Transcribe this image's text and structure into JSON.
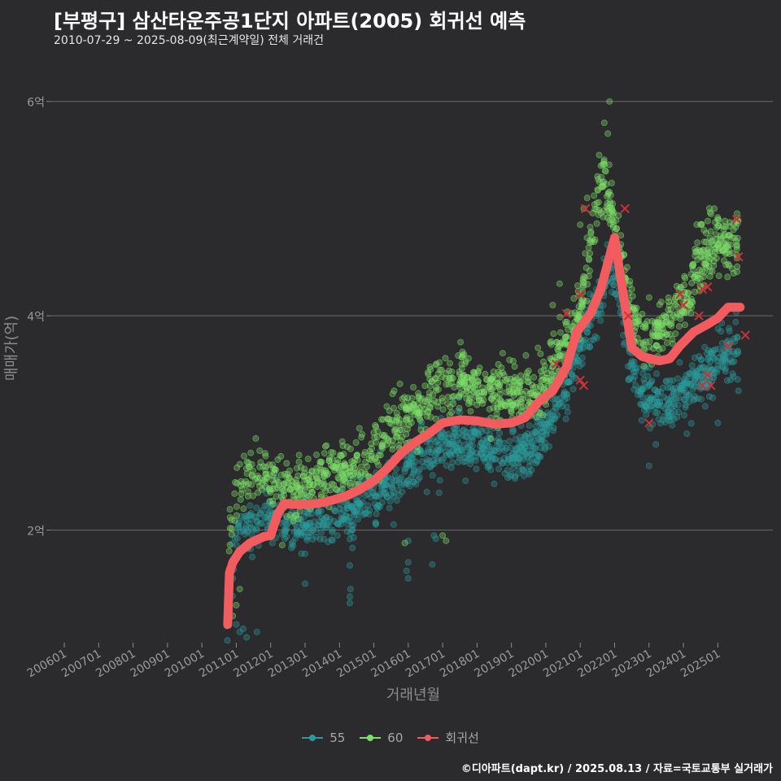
{
  "chart_data": {
    "type": "scatter",
    "title": "[부평구] 삼산타운주공1단지 아파트(2005) 회귀선 예측",
    "subtitle": "2010-07-29 ~ 2025-08-09(최근계약일) 전체 거래건",
    "xlabel": "거래년월",
    "ylabel": "매매가(억)",
    "x_range": [
      2005.55,
      2026.6
    ],
    "ylim": [
      0.95,
      6.4
    ],
    "y_ticks": [
      {
        "value": 2,
        "label": "2억"
      },
      {
        "value": 4,
        "label": "4억"
      },
      {
        "value": 6,
        "label": "6억"
      }
    ],
    "x_ticks": [
      {
        "value": 2006.0,
        "label": "200601"
      },
      {
        "value": 2007.0,
        "label": "200701"
      },
      {
        "value": 2008.0,
        "label": "200801"
      },
      {
        "value": 2009.0,
        "label": "200901"
      },
      {
        "value": 2010.0,
        "label": "201001"
      },
      {
        "value": 2011.0,
        "label": "201101"
      },
      {
        "value": 2012.0,
        "label": "201201"
      },
      {
        "value": 2013.0,
        "label": "201301"
      },
      {
        "value": 2014.0,
        "label": "201401"
      },
      {
        "value": 2015.0,
        "label": "201501"
      },
      {
        "value": 2016.0,
        "label": "201601"
      },
      {
        "value": 2017.0,
        "label": "201701"
      },
      {
        "value": 2018.0,
        "label": "201801"
      },
      {
        "value": 2019.0,
        "label": "201901"
      },
      {
        "value": 2020.0,
        "label": "202001"
      },
      {
        "value": 2021.0,
        "label": "202101"
      },
      {
        "value": 2022.0,
        "label": "202201"
      },
      {
        "value": 2023.0,
        "label": "202301"
      },
      {
        "value": 2024.0,
        "label": "202401"
      },
      {
        "value": 2025.0,
        "label": "202501"
      }
    ],
    "grid": "horizontal",
    "legend_position": "bottom",
    "series": [
      {
        "name": "55",
        "color": "#2a9b9b",
        "trend": [
          [
            2010.7,
            1.0
          ],
          [
            2011.0,
            1.95
          ],
          [
            2011.5,
            2.05
          ],
          [
            2012.0,
            2.12
          ],
          [
            2012.5,
            2.08
          ],
          [
            2013.0,
            2.05
          ],
          [
            2013.5,
            2.08
          ],
          [
            2014.0,
            2.15
          ],
          [
            2014.5,
            2.2
          ],
          [
            2015.0,
            2.3
          ],
          [
            2015.5,
            2.45
          ],
          [
            2016.0,
            2.55
          ],
          [
            2016.5,
            2.7
          ],
          [
            2017.0,
            2.8
          ],
          [
            2017.5,
            2.82
          ],
          [
            2018.0,
            2.8
          ],
          [
            2018.5,
            2.75
          ],
          [
            2019.0,
            2.72
          ],
          [
            2019.5,
            2.75
          ],
          [
            2020.0,
            2.95
          ],
          [
            2020.5,
            3.25
          ],
          [
            2021.0,
            3.7
          ],
          [
            2021.5,
            4.15
          ],
          [
            2021.9,
            4.5
          ],
          [
            2022.2,
            4.1
          ],
          [
            2022.6,
            3.4
          ],
          [
            2023.0,
            3.2
          ],
          [
            2023.5,
            3.15
          ],
          [
            2024.0,
            3.3
          ],
          [
            2024.5,
            3.45
          ],
          [
            2025.0,
            3.6
          ],
          [
            2025.6,
            3.7
          ]
        ],
        "spread": 0.13,
        "points": [
          [
            2014.3,
            1.32
          ],
          [
            2014.3,
            1.38
          ],
          [
            2014.32,
            1.45
          ],
          [
            2014.3,
            1.67
          ],
          [
            2013.0,
            1.5
          ],
          [
            2016.0,
            1.55
          ],
          [
            2015.95,
            1.62
          ],
          [
            2016.0,
            1.7
          ],
          [
            2016.7,
            1.68
          ],
          [
            2016.8,
            1.92
          ],
          [
            2016.75,
            1.95
          ],
          [
            2016.0,
            1.9
          ],
          [
            2011.1,
            1.05
          ],
          [
            2011.2,
            1.08
          ],
          [
            2011.0,
            1.12
          ],
          [
            2011.3,
            1.0
          ],
          [
            2011.6,
            1.05
          ],
          [
            2010.9,
            1.55
          ],
          [
            2010.95,
            1.7
          ],
          [
            2023.0,
            2.6
          ],
          [
            2023.2,
            2.8
          ],
          [
            2024.1,
            2.9
          ],
          [
            2025.0,
            3.0
          ],
          [
            2025.6,
            3.3
          ],
          [
            2022.0,
            4.6
          ],
          [
            2021.9,
            4.45
          ],
          [
            2021.7,
            4.3
          ],
          [
            2021.5,
            4.2
          ]
        ]
      },
      {
        "name": "60",
        "color": "#7ee06a",
        "trend": [
          [
            2010.7,
            1.7
          ],
          [
            2011.0,
            2.3
          ],
          [
            2011.5,
            2.55
          ],
          [
            2012.0,
            2.45
          ],
          [
            2012.5,
            2.35
          ],
          [
            2013.0,
            2.45
          ],
          [
            2013.5,
            2.55
          ],
          [
            2014.0,
            2.55
          ],
          [
            2014.5,
            2.6
          ],
          [
            2015.0,
            2.75
          ],
          [
            2015.5,
            2.95
          ],
          [
            2016.0,
            3.05
          ],
          [
            2016.5,
            3.2
          ],
          [
            2017.0,
            3.35
          ],
          [
            2017.5,
            3.4
          ],
          [
            2018.0,
            3.35
          ],
          [
            2018.5,
            3.3
          ],
          [
            2019.0,
            3.25
          ],
          [
            2019.5,
            3.3
          ],
          [
            2020.0,
            3.4
          ],
          [
            2020.5,
            3.7
          ],
          [
            2021.0,
            4.1
          ],
          [
            2021.3,
            4.7
          ],
          [
            2021.6,
            5.3
          ],
          [
            2021.9,
            5.0
          ],
          [
            2022.2,
            4.5
          ],
          [
            2022.6,
            3.9
          ],
          [
            2023.0,
            3.75
          ],
          [
            2023.5,
            3.95
          ],
          [
            2024.0,
            4.1
          ],
          [
            2024.5,
            4.5
          ],
          [
            2025.0,
            4.7
          ],
          [
            2025.6,
            4.7
          ]
        ],
        "spread": 0.14,
        "points": [
          [
            2021.85,
            6.0
          ],
          [
            2021.7,
            5.8
          ],
          [
            2021.8,
            5.7
          ],
          [
            2021.55,
            5.5
          ],
          [
            2021.6,
            5.4
          ],
          [
            2021.5,
            5.3
          ],
          [
            2021.2,
            5.1
          ],
          [
            2021.1,
            5.0
          ],
          [
            2021.0,
            4.85
          ],
          [
            2024.9,
            5.0
          ],
          [
            2024.8,
            4.95
          ],
          [
            2025.0,
            4.9
          ],
          [
            2025.3,
            4.75
          ],
          [
            2024.5,
            4.85
          ],
          [
            2024.6,
            4.8
          ],
          [
            2020.4,
            4.3
          ],
          [
            2020.2,
            4.1
          ],
          [
            2015.9,
            1.88
          ],
          [
            2017.0,
            1.95
          ],
          [
            2017.1,
            1.9
          ],
          [
            2011.0,
            1.3
          ],
          [
            2010.9,
            1.2
          ],
          [
            2011.1,
            1.45
          ]
        ]
      }
    ],
    "regression": {
      "name": "회귀선",
      "color": "#f25c5f",
      "points": [
        [
          2010.75,
          1.12
        ],
        [
          2010.8,
          1.6
        ],
        [
          2010.9,
          1.7
        ],
        [
          2011.1,
          1.8
        ],
        [
          2011.4,
          1.88
        ],
        [
          2011.8,
          1.94
        ],
        [
          2012.0,
          1.95
        ],
        [
          2012.2,
          2.15
        ],
        [
          2012.4,
          2.25
        ],
        [
          2012.6,
          2.24
        ],
        [
          2013.0,
          2.24
        ],
        [
          2013.4,
          2.25
        ],
        [
          2013.8,
          2.28
        ],
        [
          2014.2,
          2.32
        ],
        [
          2014.6,
          2.38
        ],
        [
          2015.0,
          2.46
        ],
        [
          2015.4,
          2.58
        ],
        [
          2015.8,
          2.72
        ],
        [
          2016.2,
          2.82
        ],
        [
          2016.6,
          2.9
        ],
        [
          2017.0,
          3.0
        ],
        [
          2017.5,
          3.03
        ],
        [
          2018.0,
          3.02
        ],
        [
          2018.5,
          2.99
        ],
        [
          2019.0,
          3.0
        ],
        [
          2019.4,
          3.05
        ],
        [
          2019.8,
          3.2
        ],
        [
          2020.2,
          3.3
        ],
        [
          2020.6,
          3.52
        ],
        [
          2020.9,
          3.85
        ],
        [
          2021.3,
          4.02
        ],
        [
          2021.6,
          4.25
        ],
        [
          2022.0,
          4.73
        ],
        [
          2022.2,
          4.3
        ],
        [
          2022.5,
          3.7
        ],
        [
          2022.8,
          3.62
        ],
        [
          2023.3,
          3.58
        ],
        [
          2023.6,
          3.6
        ],
        [
          2023.9,
          3.72
        ],
        [
          2024.3,
          3.85
        ],
        [
          2024.7,
          3.92
        ],
        [
          2025.0,
          3.98
        ],
        [
          2025.3,
          4.08
        ],
        [
          2025.65,
          4.08
        ]
      ]
    },
    "highlighted_trades": [
      [
        2021.15,
        5.0
      ],
      [
        2022.3,
        5.0
      ],
      [
        2020.6,
        4.02
      ],
      [
        2021.0,
        4.2
      ],
      [
        2020.3,
        3.55
      ],
      [
        2021.0,
        3.4
      ],
      [
        2021.1,
        3.35
      ],
      [
        2022.4,
        4.0
      ],
      [
        2023.0,
        3.0
      ],
      [
        2023.9,
        4.2
      ],
      [
        2024.0,
        4.1
      ],
      [
        2024.45,
        4.0
      ],
      [
        2024.55,
        4.25
      ],
      [
        2024.7,
        4.27
      ],
      [
        2024.55,
        3.35
      ],
      [
        2024.7,
        3.45
      ],
      [
        2024.8,
        3.35
      ],
      [
        2025.3,
        3.72
      ],
      [
        2025.55,
        4.9
      ],
      [
        2025.6,
        4.55
      ],
      [
        2025.8,
        3.82
      ]
    ]
  },
  "legend": {
    "items": [
      {
        "label": "55",
        "color": "#2a9b9b"
      },
      {
        "label": "60",
        "color": "#7ee06a"
      },
      {
        "label": "회귀선",
        "color": "#f25c5f"
      }
    ]
  },
  "footer": "©디아파트(dapt.kr) / 2025.08.13 / 자료=국토교통부 실거래가"
}
